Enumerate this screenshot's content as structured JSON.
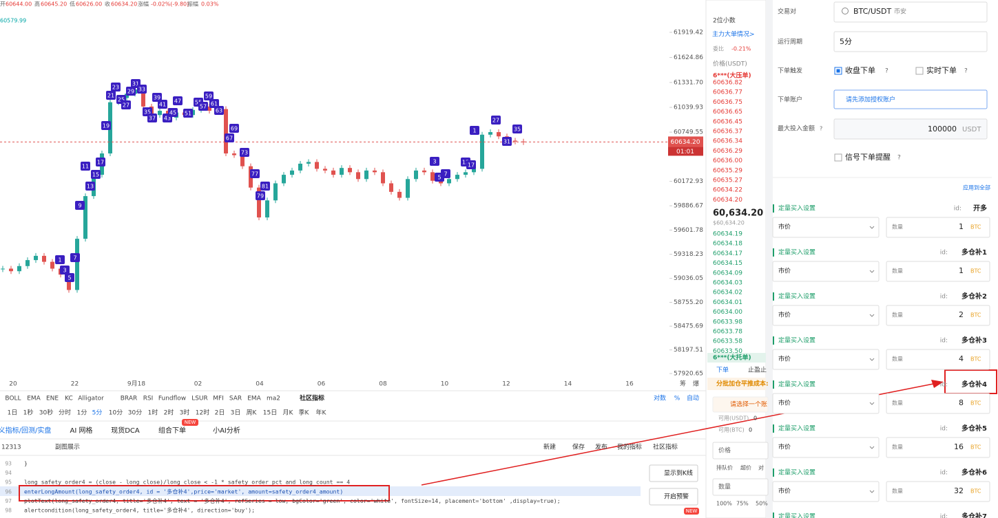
{
  "header": {
    "items": [
      {
        "label": "开",
        "value": "60644.00"
      },
      {
        "label": "高",
        "value": "60645.20"
      },
      {
        "label": "低",
        "value": "60626.00"
      },
      {
        "label": "收",
        "value": "60634.20"
      },
      {
        "label": "涨幅",
        "value": "-0.02%(-9.80)"
      },
      {
        "label": "振幅",
        "value": "0.03%"
      }
    ],
    "ma": "60579.99"
  },
  "kline": {
    "ylim": [
      57920.65,
      61919.42
    ],
    "yticks": [
      61919.42,
      61624.86,
      {
        "value": 61331.7,
        "label": "61331.70"
      },
      61039.93,
      60749.55,
      60172.93,
      59886.67,
      59601.78,
      59318.23,
      59036.05,
      {
        "value": 58755.2,
        "label": "58755.20"
      },
      58475.69,
      58197.51,
      57920.65
    ],
    "x_labels": [
      "20",
      "22",
      "9月18",
      "02",
      "04",
      "06",
      "08",
      "10",
      "12",
      "14",
      "16"
    ],
    "side_icons": [
      "筹",
      "爆"
    ],
    "closes": [
      59150,
      59120,
      59180,
      59250,
      59300,
      59230,
      59150,
      59080,
      58900,
      59500,
      60000,
      60250,
      60500,
      61100,
      61150,
      61200,
      61250,
      61050,
      60950,
      61000,
      60920,
      60980,
      60950,
      61010,
      61050,
      61000,
      61020,
      60500,
      60480,
      60350,
      60100,
      59750,
      59950,
      60150,
      60250,
      60300,
      60380,
      60400,
      60320,
      60300,
      60250,
      60330,
      60280,
      60200,
      60300,
      60280,
      60150,
      60050,
      59980,
      60200,
      60300,
      60280,
      60180,
      60150,
      60200,
      60250,
      60280,
      60320,
      60720,
      60750,
      60700,
      60650,
      60640,
      60634.2
    ],
    "last_price": {
      "value": 60634.2,
      "label": "60634.20"
    },
    "countdown": "01:01",
    "signals": [
      "1",
      "3",
      "5",
      "7",
      "9",
      "11",
      "13",
      "15",
      "17",
      "19",
      "21",
      "23",
      "25",
      "27",
      "29",
      "31",
      "33",
      "35",
      "37",
      "39",
      "41",
      "43",
      "45",
      "47",
      "51",
      "55",
      "57",
      "59",
      "61",
      "63",
      "67",
      "69",
      "73",
      "77",
      "79",
      "81",
      "1",
      "3",
      "5",
      "7",
      "13",
      "17",
      "27",
      "31",
      "35"
    ]
  },
  "indicator_bar": {
    "indicators": [
      "BOLL",
      "EMA",
      "ENE",
      "KC",
      "Alligator",
      "BRAR",
      "RSI",
      "Fundflow",
      "LSUR",
      "MFI",
      "SAR",
      "EMA",
      "ma2"
    ],
    "community": "社区指标",
    "scale_opts": [
      "对数",
      "%",
      "自动"
    ]
  },
  "timeframes": [
    "1日",
    "1秒",
    "30秒",
    "分时",
    "1分",
    "5分",
    "10分",
    "30分",
    "1时",
    "2时",
    "3时",
    "12时",
    "2日",
    "3日",
    "周K",
    "15日",
    "月K",
    "季K",
    "年K"
  ],
  "tabs": [
    "义指标/回测/实盘",
    "AI 网格",
    "现货DCA",
    "组合下单",
    "小AI分析"
  ],
  "new_badge": "NEW",
  "editor": {
    "id": "12313",
    "subview": "副图展示",
    "actions": [
      "新建",
      "保存",
      "发布",
      "我的指标",
      "社区指标"
    ],
    "lines": [
      {
        "no": "93",
        "code": "}"
      },
      {
        "no": "94",
        "code": ""
      },
      {
        "no": "95",
        "code": "long_safety_order4 = (close - long_close)/long_close < -1 * safety_order_pct and long_count == 4"
      },
      {
        "no": "96",
        "code": "enterLongAmount(long_safety_order4, id = '多仓补4',price='market', amount=safety_order4_amount)"
      },
      {
        "no": "97",
        "code": "plotText(long_safety_order4, title='多仓补4', text = '多仓补4', refSeries = low, bgColor='green', color='white', fontSize=14, placement='bottom' ,display=true);"
      },
      {
        "no": "98",
        "code": "alertcondition(long_safety_order4, title='多仓补4', direction='buy');"
      }
    ],
    "side_buttons": [
      "显示到K线",
      "开启预警"
    ]
  },
  "order_book": {
    "decimals": "2位小数",
    "big_orders": "主力大单情况>",
    "ratio_label": "委比",
    "ratio": "-0.21%",
    "price_header": "价格(USDT)",
    "ask_wall": "6***(大压单)",
    "asks": [
      "60636.82",
      "60636.77",
      "60636.75",
      "60636.65",
      "60636.45",
      "60636.37",
      "60636.34",
      "60636.29",
      "60636.00",
      "60635.29",
      "60635.27",
      "60634.22",
      "60634.20"
    ],
    "last": "60,634.20",
    "last_usd": "$60,634.20",
    "bids": [
      "60634.19",
      "60634.18",
      "60634.17",
      "60634.15",
      "60634.09",
      "60634.03",
      "60634.02",
      "60634.01",
      "60634.00",
      "60633.98",
      "60633.78",
      "60633.58",
      "60633.50"
    ],
    "bid_wall": "6***(大托单)"
  },
  "trade": {
    "tab_buy": "下单",
    "tab_tp": "止盈止",
    "cost": "分批加仓平推成本:",
    "select_account": "请选择一个账",
    "avail_usdt": "可用(USDT)",
    "avail_usdt_val": "0",
    "avail_btc": "可用(BTC)",
    "avail_btc_val": "0",
    "price": "价格",
    "price_opts": [
      "排队价",
      "超价",
      "对"
    ],
    "qty": "数量",
    "pct": [
      "100%",
      "75%",
      "50%"
    ]
  },
  "form": {
    "pair_label": "交易对",
    "pair": "BTC/USDT",
    "exchange": "币安",
    "period_label": "运行周期",
    "period": "5分",
    "trigger_label": "下单触发",
    "trigger_close": "收盘下单",
    "trigger_realtime": "实时下单",
    "account_label": "下单账户",
    "account": "请先添加授权账户",
    "max_label": "最大投入金额",
    "max_value": "100000",
    "max_unit": "USDT",
    "alert": "信号下单提醒",
    "help": "?",
    "apply_all": "应用到全部",
    "orders": [
      {
        "title": "定量买入设置",
        "id_label": "id:",
        "id": "开多",
        "type": "市价",
        "qty_label": "数量",
        "qty": "1",
        "unit": "BTC"
      },
      {
        "title": "定量买入设置",
        "id_label": "id:",
        "id": "多仓补1",
        "type": "市价",
        "qty_label": "数量",
        "qty": "1",
        "unit": "BTC"
      },
      {
        "title": "定量买入设置",
        "id_label": "id:",
        "id": "多仓补2",
        "type": "市价",
        "qty_label": "数量",
        "qty": "2",
        "unit": "BTC"
      },
      {
        "title": "定量买入设置",
        "id_label": "id:",
        "id": "多仓补3",
        "type": "市价",
        "qty_label": "数量",
        "qty": "4",
        "unit": "BTC"
      },
      {
        "title": "定量买入设置",
        "id_label": "id:",
        "id": "多仓补4",
        "type": "市价",
        "qty_label": "数量",
        "qty": "8",
        "unit": "BTC"
      },
      {
        "title": "定量买入设置",
        "id_label": "id:",
        "id": "多仓补5",
        "type": "市价",
        "qty_label": "数量",
        "qty": "16",
        "unit": "BTC"
      },
      {
        "title": "定量买入设置",
        "id_label": "id:",
        "id": "多仓补6",
        "type": "市价",
        "qty_label": "数量",
        "qty": "32",
        "unit": "BTC"
      },
      {
        "title": "定量买入设置",
        "id_label": "id:",
        "id": "多仓补7"
      }
    ]
  }
}
